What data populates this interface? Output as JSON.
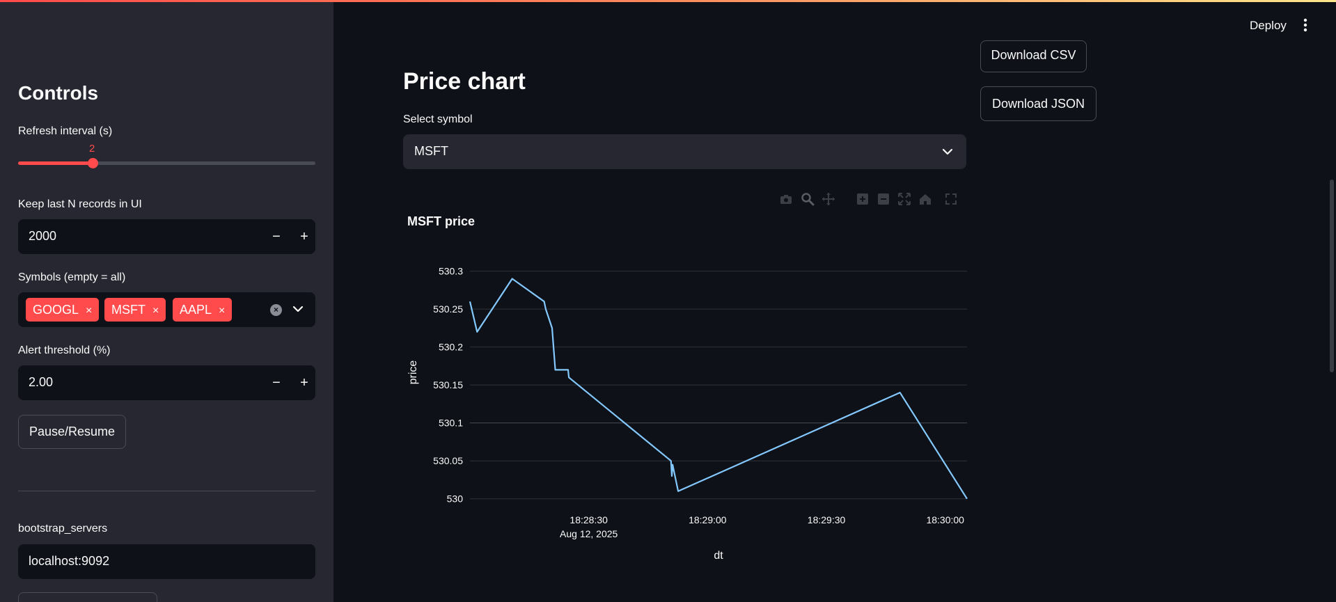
{
  "header": {
    "deploy_label": "Deploy"
  },
  "sidebar": {
    "title": "Controls",
    "refresh": {
      "label": "Refresh interval (s)",
      "value": "2",
      "fraction": 0.25
    },
    "keep_n": {
      "label": "Keep last N records in UI",
      "value": "2000",
      "minus": "−",
      "plus": "+"
    },
    "symbols": {
      "label": "Symbols (empty = all)",
      "chips": [
        "GOOGL",
        "MSFT",
        "AAPL"
      ],
      "remove": "×"
    },
    "alert": {
      "label": "Alert threshold (%)",
      "value": "2.00",
      "minus": "−",
      "plus": "+"
    },
    "pause_label": "Pause/Resume",
    "bootstrap": {
      "label": "bootstrap_servers",
      "value": "localhost:9092"
    }
  },
  "main": {
    "title": "Price chart",
    "select_label": "Select symbol",
    "selected_symbol": "MSFT",
    "download_csv": "Download CSV",
    "download_json": "Download JSON"
  },
  "colors": {
    "accent": "#ff4b4b",
    "line": "#83c9ff",
    "bg": "#0e1117",
    "sidebar": "#262730"
  },
  "modebar_icons": [
    "camera-icon",
    "zoom-icon",
    "pan-icon",
    "zoom-in-icon",
    "zoom-out-icon",
    "autoscale-icon",
    "home-icon",
    "fullscreen-icon"
  ],
  "chart_data": {
    "type": "line",
    "title": "MSFT price",
    "xlabel": "dt",
    "ylabel": "price",
    "x_ticks": [
      "18:28:30",
      "18:29:00",
      "18:29:30",
      "18:30:00"
    ],
    "x_tick_sub": "Aug 12, 2025",
    "y_ticks": [
      "530",
      "530.05",
      "530.1",
      "530.15",
      "530.2",
      "530.25",
      "530.3"
    ],
    "ylim": [
      529.997,
      530.318
    ],
    "xlim_seconds_past_18_28": [
      3.3,
      65.6
    ],
    "series": [
      {
        "x": [
          3.3,
          4.2,
          8.6,
          12.6,
          12.8,
          13.6,
          14.0,
          15.6,
          15.7,
          28.5,
          28.6,
          28.7,
          29.4,
          57.2,
          65.6
        ],
        "y": [
          530.26,
          530.22,
          530.29,
          530.26,
          530.25,
          530.225,
          530.17,
          530.17,
          530.16,
          530.05,
          530.03,
          530.045,
          530.01,
          530.14,
          530.0
        ]
      }
    ],
    "grid": true
  }
}
